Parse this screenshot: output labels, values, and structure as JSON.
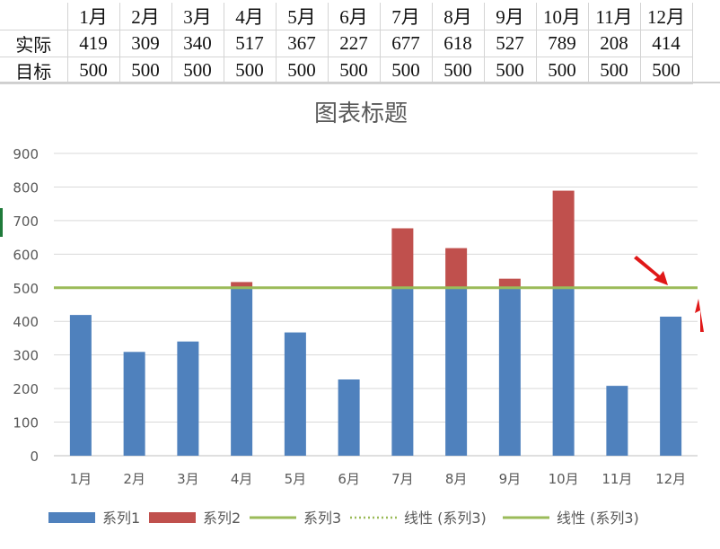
{
  "sheet": {
    "months": [
      "1月",
      "2月",
      "3月",
      "4月",
      "5月",
      "6月",
      "7月",
      "8月",
      "9月",
      "10月",
      "11月",
      "12月"
    ],
    "rows": [
      {
        "label": "实际",
        "values": [
          419,
          309,
          340,
          517,
          367,
          227,
          677,
          618,
          527,
          789,
          208,
          414
        ]
      },
      {
        "label": "目标",
        "values": [
          500,
          500,
          500,
          500,
          500,
          500,
          500,
          500,
          500,
          500,
          500,
          500
        ]
      }
    ]
  },
  "chart_data": {
    "type": "bar",
    "title": "图表标题",
    "categories": [
      "1月",
      "2月",
      "3月",
      "4月",
      "5月",
      "6月",
      "7月",
      "8月",
      "9月",
      "10月",
      "11月",
      "12月"
    ],
    "series": [
      {
        "name": "系列1",
        "kind": "bar",
        "color": "#4f81bd",
        "values": [
          419,
          309,
          340,
          500,
          367,
          227,
          500,
          500,
          500,
          500,
          208,
          414
        ]
      },
      {
        "name": "系列2",
        "kind": "bar",
        "color": "#c0504d",
        "values": [
          0,
          0,
          0,
          17,
          0,
          0,
          177,
          118,
          27,
          289,
          0,
          0
        ]
      },
      {
        "name": "系列3",
        "kind": "line",
        "color": "#9bbb59",
        "values": [
          500,
          500,
          500,
          500,
          500,
          500,
          500,
          500,
          500,
          500,
          500,
          500
        ]
      }
    ],
    "legend": [
      {
        "label": "系列1",
        "style": "bar",
        "color": "#4f81bd"
      },
      {
        "label": "系列2",
        "style": "bar",
        "color": "#c0504d"
      },
      {
        "label": "系列3",
        "style": "line",
        "color": "#9bbb59"
      },
      {
        "label": "线性 (系列3)",
        "style": "dotted",
        "color": "#9bbb59"
      },
      {
        "label": "线性 (系列3)",
        "style": "line",
        "color": "#9bbb59"
      }
    ],
    "ylim": [
      0,
      900
    ],
    "yticks": [
      0,
      100,
      200,
      300,
      400,
      500,
      600,
      700,
      800,
      900
    ],
    "grid": true,
    "legend_position": "bottom"
  }
}
